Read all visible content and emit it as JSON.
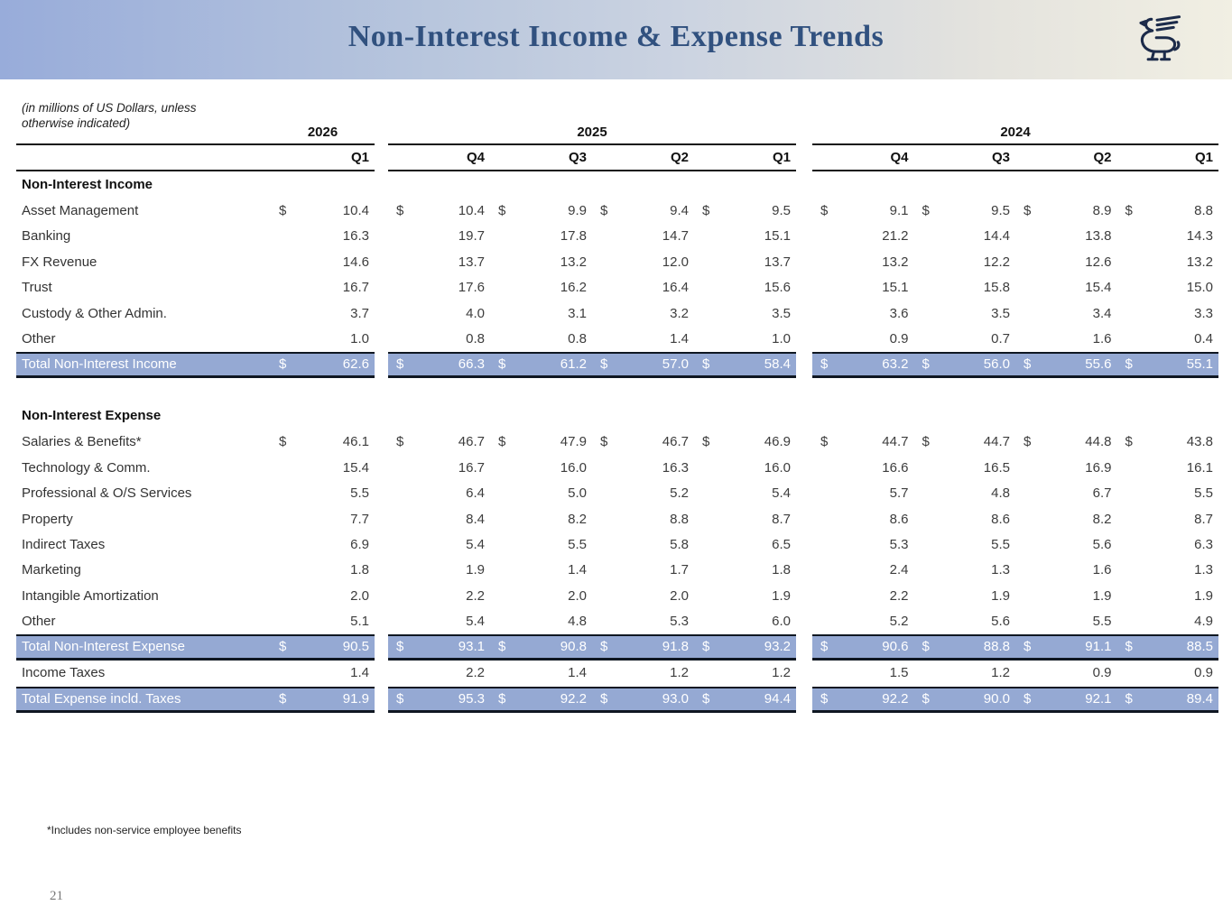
{
  "banner": {
    "title": "Non-Interest Income & Expense Trends",
    "logo": "winged-lion-logo",
    "colors": {
      "gradient_left": "#98ACDA",
      "gradient_right": "#F1EFE3",
      "title_color": "#31517F",
      "logo_color": "#1C2B4A"
    }
  },
  "table": {
    "units_note_line1": "(in millions of US Dollars, unless",
    "units_note_line2": "otherwise indicated)",
    "currency_symbol": "$",
    "highlight_color": "#95A9D3",
    "year_groups": [
      {
        "year": "2026",
        "quarters": [
          "Q1"
        ]
      },
      {
        "year": "2025",
        "quarters": [
          "Q4",
          "Q3",
          "Q2",
          "Q1"
        ]
      },
      {
        "year": "2024",
        "quarters": [
          "Q4",
          "Q3",
          "Q2",
          "Q1"
        ]
      }
    ],
    "sections": [
      {
        "header": "Non-Interest Income",
        "rows": [
          {
            "label": "Asset Management",
            "dollar": true,
            "total": false,
            "values": [
              "10.4",
              "10.4",
              "9.9",
              "9.4",
              "9.5",
              "9.1",
              "9.5",
              "8.9",
              "8.8"
            ]
          },
          {
            "label": "Banking",
            "dollar": false,
            "total": false,
            "values": [
              "16.3",
              "19.7",
              "17.8",
              "14.7",
              "15.1",
              "21.2",
              "14.4",
              "13.8",
              "14.3"
            ]
          },
          {
            "label": "FX Revenue",
            "dollar": false,
            "total": false,
            "values": [
              "14.6",
              "13.7",
              "13.2",
              "12.0",
              "13.7",
              "13.2",
              "12.2",
              "12.6",
              "13.2"
            ]
          },
          {
            "label": "Trust",
            "dollar": false,
            "total": false,
            "values": [
              "16.7",
              "17.6",
              "16.2",
              "16.4",
              "15.6",
              "15.1",
              "15.8",
              "15.4",
              "15.0"
            ]
          },
          {
            "label": "Custody & Other Admin.",
            "dollar": false,
            "total": false,
            "values": [
              "3.7",
              "4.0",
              "3.1",
              "3.2",
              "3.5",
              "3.6",
              "3.5",
              "3.4",
              "3.3"
            ]
          },
          {
            "label": "Other",
            "dollar": false,
            "total": false,
            "values": [
              "1.0",
              "0.8",
              "0.8",
              "1.4",
              "1.0",
              "0.9",
              "0.7",
              "1.6",
              "0.4"
            ]
          },
          {
            "label": "Total Non-Interest Income",
            "dollar": true,
            "total": true,
            "values": [
              "62.6",
              "66.3",
              "61.2",
              "57.0",
              "58.4",
              "63.2",
              "56.0",
              "55.6",
              "55.1"
            ]
          }
        ]
      },
      {
        "header": "Non-Interest Expense",
        "rows": [
          {
            "label": "Salaries & Benefits*",
            "dollar": true,
            "total": false,
            "values": [
              "46.1",
              "46.7",
              "47.9",
              "46.7",
              "46.9",
              "44.7",
              "44.7",
              "44.8",
              "43.8"
            ]
          },
          {
            "label": "Technology & Comm.",
            "dollar": false,
            "total": false,
            "values": [
              "15.4",
              "16.7",
              "16.0",
              "16.3",
              "16.0",
              "16.6",
              "16.5",
              "16.9",
              "16.1"
            ]
          },
          {
            "label": "Professional & O/S Services",
            "dollar": false,
            "total": false,
            "values": [
              "5.5",
              "6.4",
              "5.0",
              "5.2",
              "5.4",
              "5.7",
              "4.8",
              "6.7",
              "5.5"
            ]
          },
          {
            "label": "Property",
            "dollar": false,
            "total": false,
            "values": [
              "7.7",
              "8.4",
              "8.2",
              "8.8",
              "8.7",
              "8.6",
              "8.6",
              "8.2",
              "8.7"
            ]
          },
          {
            "label": "Indirect Taxes",
            "dollar": false,
            "total": false,
            "values": [
              "6.9",
              "5.4",
              "5.5",
              "5.8",
              "6.5",
              "5.3",
              "5.5",
              "5.6",
              "6.3"
            ]
          },
          {
            "label": "Marketing",
            "dollar": false,
            "total": false,
            "values": [
              "1.8",
              "1.9",
              "1.4",
              "1.7",
              "1.8",
              "2.4",
              "1.3",
              "1.6",
              "1.3"
            ]
          },
          {
            "label": "Intangible Amortization",
            "dollar": false,
            "total": false,
            "values": [
              "2.0",
              "2.2",
              "2.0",
              "2.0",
              "1.9",
              "2.2",
              "1.9",
              "1.9",
              "1.9"
            ]
          },
          {
            "label": "Other",
            "dollar": false,
            "total": false,
            "values": [
              "5.1",
              "5.4",
              "4.8",
              "5.3",
              "6.0",
              "5.2",
              "5.6",
              "5.5",
              "4.9"
            ]
          },
          {
            "label": "Total Non-Interest Expense",
            "dollar": true,
            "total": true,
            "values": [
              "90.5",
              "93.1",
              "90.8",
              "91.8",
              "93.2",
              "90.6",
              "88.8",
              "91.1",
              "88.5"
            ]
          },
          {
            "label": "Income Taxes",
            "dollar": false,
            "total": false,
            "values": [
              "1.4",
              "2.2",
              "1.4",
              "1.2",
              "1.2",
              "1.5",
              "1.2",
              "0.9",
              "0.9"
            ]
          },
          {
            "label": "Total Expense incld. Taxes",
            "dollar": true,
            "total": true,
            "values": [
              "91.9",
              "95.3",
              "92.2",
              "93.0",
              "94.4",
              "92.2",
              "90.0",
              "92.1",
              "89.4"
            ]
          }
        ]
      }
    ]
  },
  "footnote": "*Includes non-service employee benefits",
  "page_number": "21"
}
